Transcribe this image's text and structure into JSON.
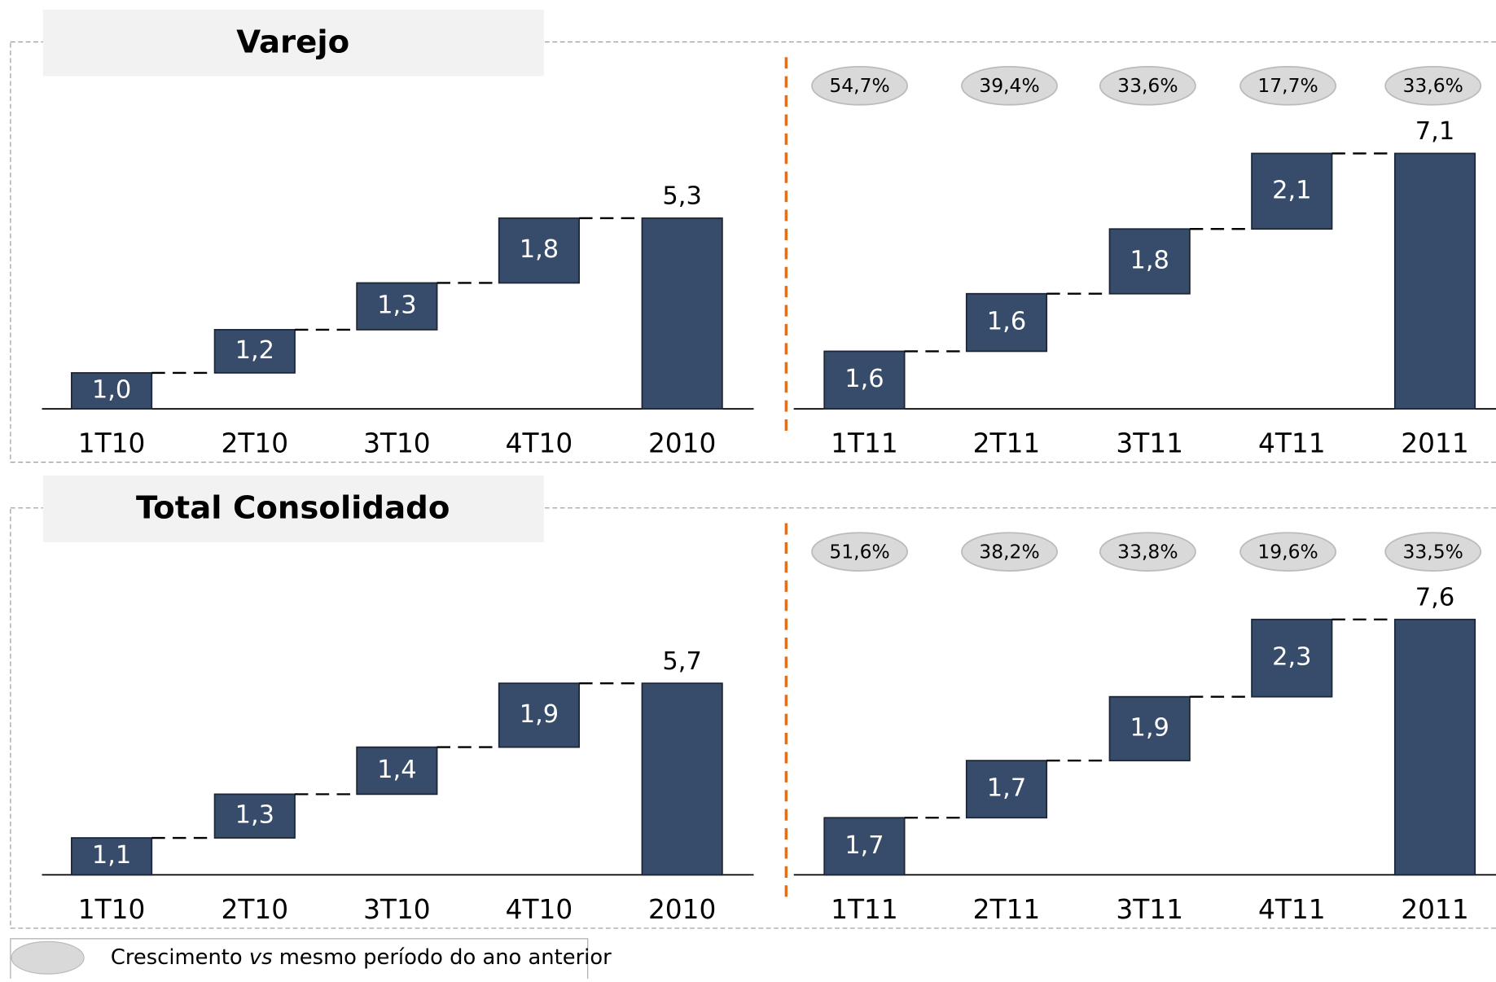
{
  "chart_data": [
    {
      "type": "waterfall",
      "title": "Varejo",
      "groups": [
        {
          "categories": [
            "1T10",
            "2T10",
            "3T10",
            "4T10",
            "2010"
          ],
          "values": [
            1.0,
            1.2,
            1.3,
            1.8,
            5.3
          ],
          "value_labels": [
            "1,0",
            "1,2",
            "1,3",
            "1,8",
            "5,3"
          ]
        },
        {
          "categories": [
            "1T11",
            "2T11",
            "3T11",
            "4T11",
            "2011"
          ],
          "values": [
            1.6,
            1.6,
            1.8,
            2.1,
            7.1
          ],
          "value_labels": [
            "1,6",
            "1,6",
            "1,8",
            "2,1",
            "7,1"
          ],
          "growth": [
            54.7,
            39.4,
            33.6,
            17.7,
            33.6
          ],
          "growth_labels": [
            "54,7%",
            "39,4%",
            "33,6%",
            "17,7%",
            "33,6%"
          ]
        }
      ]
    },
    {
      "type": "waterfall",
      "title": "Total Consolidado",
      "groups": [
        {
          "categories": [
            "1T10",
            "2T10",
            "3T10",
            "4T10",
            "2010"
          ],
          "values": [
            1.1,
            1.3,
            1.4,
            1.9,
            5.7
          ],
          "value_labels": [
            "1,1",
            "1,3",
            "1,4",
            "1,9",
            "5,7"
          ]
        },
        {
          "categories": [
            "1T11",
            "2T11",
            "3T11",
            "4T11",
            "2011"
          ],
          "values": [
            1.7,
            1.7,
            1.9,
            2.3,
            7.6
          ],
          "value_labels": [
            "1,7",
            "1,7",
            "1,9",
            "2,3",
            "7,6"
          ],
          "growth": [
            51.6,
            38.2,
            33.8,
            19.6,
            33.5
          ],
          "growth_labels": [
            "51,6%",
            "38,2%",
            "33,8%",
            "19,6%",
            "33,5%"
          ]
        }
      ]
    }
  ],
  "legend": [
    "Crescimento",
    "vs",
    "mesmo período do ano anterior"
  ]
}
